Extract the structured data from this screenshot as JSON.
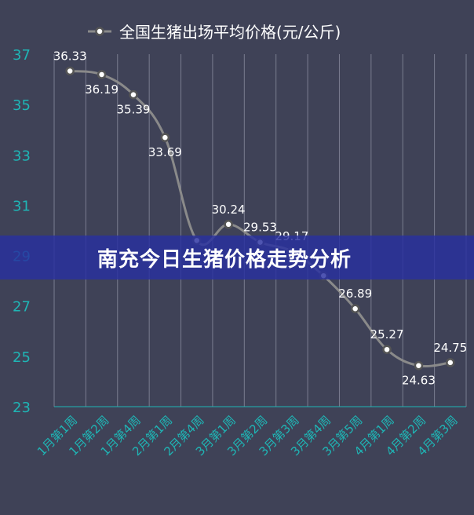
{
  "chart_data": {
    "type": "line",
    "legend": {
      "label": "全国生猪出场平均价格(元/公斤)",
      "position": "top"
    },
    "categories": [
      "1月第1周",
      "1月第2周",
      "1月第4周",
      "2月第1周",
      "2月第4周",
      "3月第1周",
      "3月第2周",
      "3月第3周",
      "3月第4周",
      "3月第5周",
      "4月第1周",
      "4月第2周",
      "4月第3周"
    ],
    "series": [
      {
        "name": "全国生猪出场平均价格(元/公斤)",
        "values": [
          36.33,
          36.19,
          35.39,
          33.69,
          29.6,
          30.24,
          29.53,
          29.17,
          28.2,
          26.89,
          25.27,
          24.63,
          24.75
        ]
      }
    ],
    "data_labels": [
      "36.33",
      "36.19",
      "35.39",
      "33.69",
      "",
      "30.24",
      "29.53",
      "29.17",
      "",
      "26.89",
      "25.27",
      "24.63",
      "24.75"
    ],
    "ylim": [
      23,
      37
    ],
    "yticks": [
      23,
      25,
      27,
      29,
      31,
      33,
      35,
      37
    ],
    "grid": {
      "vertical": true,
      "horizontal": false
    },
    "colors": {
      "line": "#8a8a8a",
      "marker_fill": "#ffffff",
      "marker_stroke": "#555555",
      "axis_text": "#1fb5b5",
      "label_text": "#ffffff",
      "grid": "#7a7d90"
    }
  },
  "banner": {
    "title": "南充今日生猪价格走势分析"
  }
}
